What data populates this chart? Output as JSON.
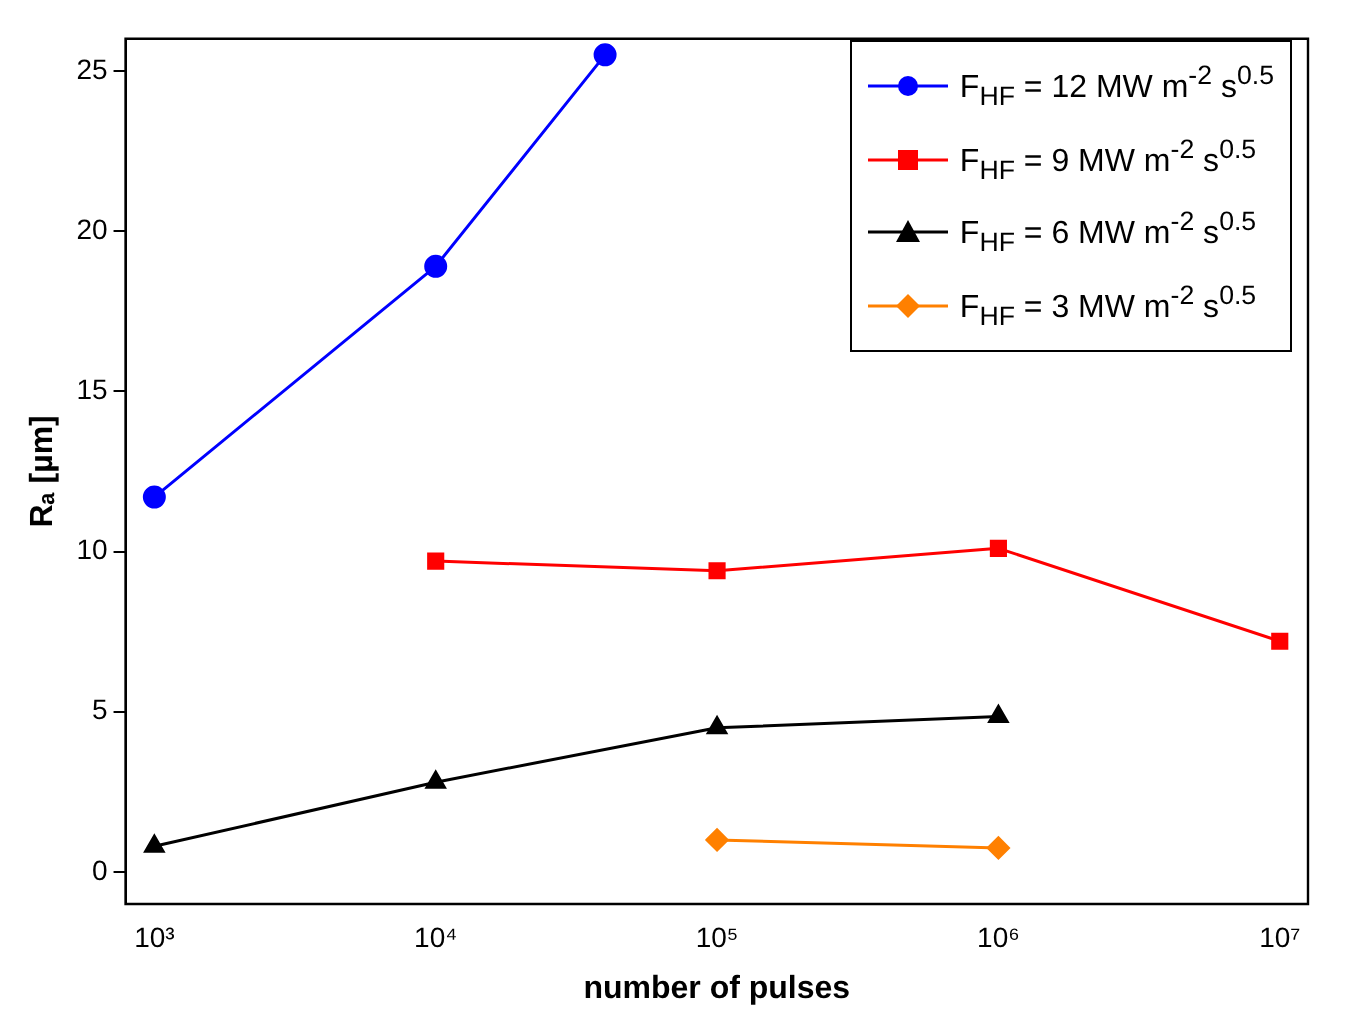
{
  "chart_data": {
    "type": "line",
    "xlabel": "number of pulses",
    "ylabel": "Rₐ [µm]",
    "log": "x",
    "xlim": [
      790,
      12600000
    ],
    "xticks": [
      {
        "value": 1000,
        "label": "10³"
      },
      {
        "value": 10000,
        "label": "10⁴"
      },
      {
        "value": 100000,
        "label": "10⁵"
      },
      {
        "value": 1000000,
        "label": "10⁶"
      },
      {
        "value": 10000000,
        "label": "10⁷"
      }
    ],
    "ylim": [
      -1,
      26
    ],
    "yticks": [
      0,
      5,
      10,
      15,
      20,
      25
    ],
    "grid": false,
    "legend": "top right",
    "line_style": "solid",
    "series": [
      {
        "name": "F$_{HF}$ = 12 MW m$^{-2}$ s$^{0.5}$",
        "color": "#0000ff",
        "marker": "circle",
        "x": [
          1000,
          10000,
          40000
        ],
        "values": [
          11.7,
          18.9,
          25.5
        ]
      },
      {
        "name": "F$_{HF}$ = 9 MW m$^{-2}$ s$^{0.5}$",
        "color": "#ff0000",
        "marker": "square",
        "x": [
          10000,
          100000,
          1000000,
          10000000
        ],
        "values": [
          9.7,
          9.4,
          10.1,
          7.2
        ]
      },
      {
        "name": "F$_{HF}$ = 6 MW m$^{-2}$ s$^{0.5}$",
        "color": "#000000",
        "marker": "triangle",
        "x": [
          1000,
          10000,
          100000,
          1000000
        ],
        "values": [
          0.8,
          2.8,
          4.5,
          4.85
        ]
      },
      {
        "name": "F$_{HF}$ = 3 MW m$^{-2}$ s$^{0.5}$",
        "color": "#ff8000",
        "marker": "diamond",
        "x": [
          100000,
          1000000
        ],
        "values": [
          1.0,
          0.75
        ]
      }
    ]
  }
}
